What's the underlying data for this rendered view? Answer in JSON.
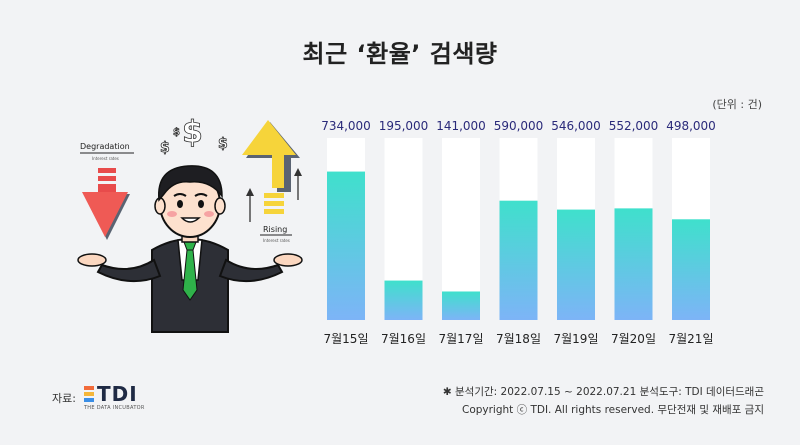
{
  "title": "최근 ‘환율’ 검색량",
  "unit_label": "(단위 : 건)",
  "illustration": {
    "degradation_label": "Degradation",
    "degradation_sub": "Interest rates",
    "rising_label": "Rising",
    "rising_sub": "Interest rates"
  },
  "footer": {
    "source_label": "자료:",
    "logo_text": "TDI",
    "logo_sub": "THE DATA INCUBATOR",
    "period_line": "✱ 분석기간: 2022.07.15 ~ 2022.07.21   분석도구: TDI 데이터드래곤",
    "copyright_line": "Copyright ⓒ TDI. All rights reserved. 무단전재 및 재배포 금지"
  },
  "colors": {
    "bar_top": "#3fe0cc",
    "bar_bottom": "#7db4f7",
    "bar_track": "#ffffff",
    "value_text": "#2a2a7a"
  },
  "chart_data": {
    "type": "bar",
    "categories": [
      "7월15일",
      "7월16일",
      "7월17일",
      "7월18일",
      "7월19일",
      "7월20일",
      "7월21일"
    ],
    "values": [
      734000,
      195000,
      141000,
      590000,
      546000,
      552000,
      498000
    ],
    "value_labels": [
      "734,000",
      "195,000",
      "141,000",
      "590,000",
      "546,000",
      "552,000",
      "498,000"
    ],
    "ylim": [
      0,
      900000
    ]
  }
}
